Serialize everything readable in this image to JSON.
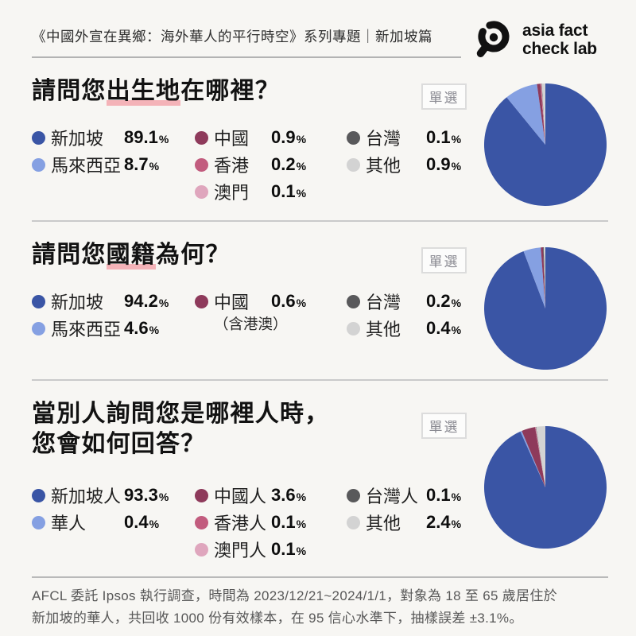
{
  "header": {
    "title": "《中國外宣在異鄉：海外華人的平行時空》系列專題｜新加坡篇",
    "logo": {
      "line1": "asia fact",
      "line2": "check lab"
    }
  },
  "ui": {
    "badge_label": "單選",
    "percent_sign": "%"
  },
  "colors": {
    "navy": "#3A55A5",
    "lightblue": "#85A0E2",
    "maroon": "#8E3A5B",
    "rose": "#C25C7E",
    "pink": "#DFA6BD",
    "darkgray": "#59595B",
    "lightgray": "#D3D3D3",
    "underline_pink": "#F4B3B8"
  },
  "chart_data": [
    {
      "type": "pie",
      "title": "請問您出生地在哪裡？",
      "question_type": "單選",
      "unit": "%",
      "categories": [
        "新加坡",
        "馬來西亞",
        "中國",
        "香港",
        "澳門",
        "台灣",
        "其他"
      ],
      "values": [
        89.1,
        8.7,
        0.9,
        0.2,
        0.1,
        0.1,
        0.9
      ],
      "colors": [
        "navy",
        "lightblue",
        "maroon",
        "rose",
        "pink",
        "darkgray",
        "lightgray"
      ],
      "legend_position": "left"
    },
    {
      "type": "pie",
      "title": "請問您國籍為何？",
      "question_type": "單選",
      "unit": "%",
      "categories": [
        "新加坡",
        "馬來西亞",
        "中國",
        "台灣",
        "其他"
      ],
      "values": [
        94.2,
        4.6,
        0.6,
        0.2,
        0.4
      ],
      "colors": [
        "navy",
        "lightblue",
        "maroon",
        "darkgray",
        "lightgray"
      ],
      "category_notes": {
        "中國": "（含港澳）"
      },
      "legend_position": "left"
    },
    {
      "type": "pie",
      "title": "當別人詢問您是哪裡人時，您會如何回答？",
      "question_type": "單選",
      "unit": "%",
      "categories": [
        "新加坡人",
        "華人",
        "中國人",
        "香港人",
        "澳門人",
        "台灣人",
        "其他"
      ],
      "values": [
        93.3,
        0.4,
        3.6,
        0.1,
        0.1,
        0.1,
        2.4
      ],
      "colors": [
        "navy",
        "lightblue",
        "maroon",
        "rose",
        "pink",
        "darkgray",
        "lightgray"
      ],
      "legend_position": "left"
    }
  ],
  "sections": [
    {
      "title_lines": [
        {
          "pre": "請問您",
          "marked": "出生地",
          "post": "在哪裡？"
        }
      ],
      "legend_columns": [
        [
          0,
          1
        ],
        [
          2,
          3,
          4
        ],
        [
          5,
          6
        ]
      ]
    },
    {
      "title_lines": [
        {
          "pre": "請問您",
          "marked": "國籍",
          "post": "為何？"
        }
      ],
      "legend_columns": [
        [
          0,
          1
        ],
        [
          2
        ],
        [
          3,
          4
        ]
      ],
      "note": {
        "column": 1,
        "after_index": 2,
        "text": "（含港澳）"
      }
    },
    {
      "title_lines": [
        {
          "pre": "當別人詢問您是哪裡人時，",
          "marked": "",
          "post": ""
        },
        {
          "pre": "您會如何回答？",
          "marked": "",
          "post": ""
        }
      ],
      "legend_columns": [
        [
          0,
          1
        ],
        [
          2,
          3,
          4
        ],
        [
          5,
          6
        ]
      ]
    }
  ],
  "footer": {
    "line1": "AFCL 委託 Ipsos 執行調查，時間為 2023/12/21~2024/1/1，對象為 18 至 65 歲居住於",
    "line2": "新加坡的華人，共回收 1000 份有效樣本，在 95 信心水準下，抽樣誤差 ±3.1%。"
  }
}
